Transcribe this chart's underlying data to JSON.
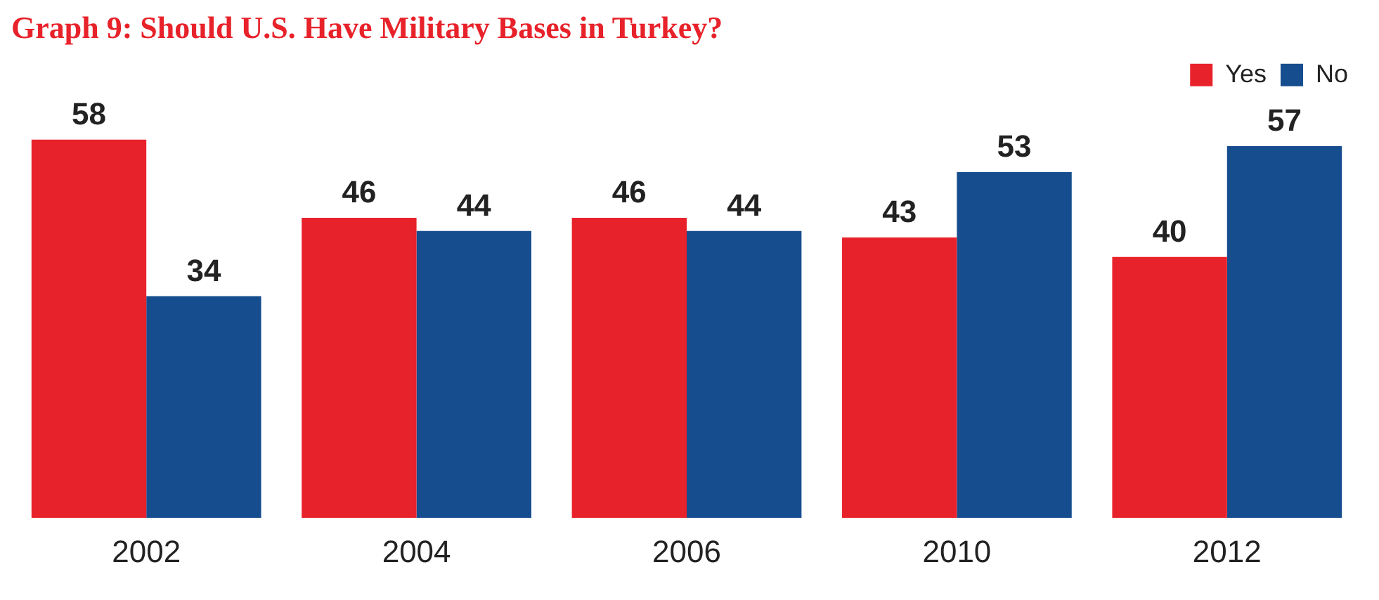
{
  "chart_data": {
    "type": "bar",
    "title": "Graph 9: Should U.S. Have Military Bases in Turkey?",
    "categories": [
      "2002",
      "2004",
      "2006",
      "2010",
      "2012"
    ],
    "series": [
      {
        "name": "Yes",
        "color": "#e8222a",
        "values": [
          58,
          46,
          46,
          43,
          40
        ]
      },
      {
        "name": "No",
        "color": "#164d8e",
        "values": [
          34,
          44,
          44,
          53,
          57
        ]
      }
    ],
    "data_labels": true,
    "legend": "top right",
    "grid": false
  }
}
